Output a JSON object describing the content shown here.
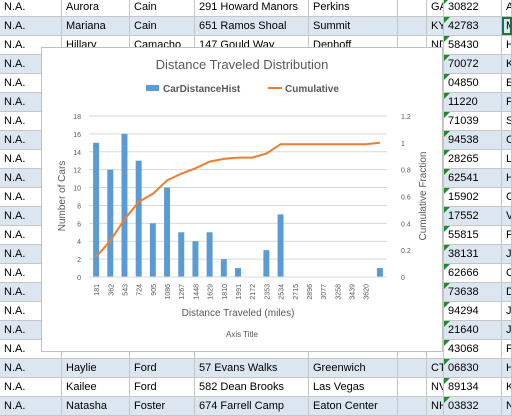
{
  "colors": {
    "band": "#dce6f1",
    "bar": "#5b9bd5",
    "line": "#ed7d31",
    "grid": "#d9d9d9",
    "axis_text": "#595959",
    "cell_marker": "#1e8c2e"
  },
  "sheet": {
    "rows": [
      {
        "top": [
          "N.A.",
          "Aurora",
          "Cain",
          "291 Howard Manors",
          "Perkins",
          "",
          "GA",
          "30822",
          "A"
        ]
      },
      {
        "top": [
          "N.A.",
          "Mariana",
          "Cain",
          "651 Ramos Shoal",
          "Summit",
          "",
          "KY",
          "42783",
          "M"
        ]
      },
      {
        "top": [
          "N.A.",
          "Hillary",
          "Camacho",
          "147 Gould Way",
          "Denhoff",
          "",
          "ND",
          "58430",
          "H"
        ]
      },
      {
        "top": [
          "N.A.",
          "",
          "",
          "",
          "",
          "",
          "",
          "70072",
          "K"
        ]
      },
      {
        "top": [
          "N.A.",
          "",
          "",
          "",
          "",
          "",
          "E",
          "04850",
          "E"
        ]
      },
      {
        "top": [
          "N.A.",
          "",
          "",
          "",
          "",
          "",
          "Y",
          "11220",
          "F"
        ]
      },
      {
        "top": [
          "N.A.",
          "",
          "",
          "",
          "",
          "",
          "",
          "71039",
          "S"
        ]
      },
      {
        "top": [
          "N.A.",
          "",
          "",
          "",
          "",
          "",
          "C",
          "94538",
          "C"
        ]
      },
      {
        "top": [
          "N.A.",
          "",
          "",
          "",
          "",
          "",
          "C",
          "28265",
          "L"
        ]
      },
      {
        "top": [
          "N.A.",
          "",
          "",
          "",
          "",
          "",
          "",
          "62541",
          "H"
        ]
      },
      {
        "top": [
          "N.A.",
          "",
          "",
          "",
          "",
          "",
          "A",
          "15902",
          "C"
        ]
      },
      {
        "top": [
          "N.A.",
          "",
          "",
          "",
          "",
          "",
          "A",
          "17552",
          "V"
        ]
      },
      {
        "top": [
          "N.A.",
          "",
          "",
          "",
          "",
          "",
          "N",
          "55815",
          "F"
        ]
      },
      {
        "top": [
          "N.A.",
          "",
          "",
          "",
          "",
          "",
          "N",
          "38131",
          "J"
        ]
      },
      {
        "top": [
          "N.A.",
          "",
          "",
          "",
          "",
          "",
          "",
          "62666",
          "C"
        ]
      },
      {
        "top": [
          "N.A.",
          "",
          "",
          "",
          "",
          "",
          "K",
          "73638",
          "D"
        ]
      },
      {
        "top": [
          "N.A.",
          "",
          "",
          "",
          "",
          "",
          "A",
          "94294",
          "J"
        ]
      },
      {
        "top": [
          "N.A.",
          "",
          "",
          "",
          "",
          "",
          "D",
          "21640",
          "J"
        ]
      },
      {
        "top": [
          "N.A.",
          "",
          "",
          "",
          "",
          "",
          "H",
          "43068",
          "F"
        ]
      },
      {
        "top": [
          "N.A.",
          "Haylie",
          "Ford",
          "57 Evans Walks",
          "Greenwich",
          "",
          "CT",
          "06830",
          "H"
        ]
      },
      {
        "top": [
          "N.A.",
          "Kailee",
          "Ford",
          "582 Dean Brooks",
          "Las Vegas",
          "",
          "NV",
          "89134",
          "K"
        ]
      },
      {
        "top": [
          "N.A.",
          "Natasha",
          "Foster",
          "674 Farrell Camp",
          "Eaton Center",
          "",
          "NH",
          "03832",
          "N"
        ]
      }
    ]
  },
  "chart_data": {
    "type": "bar",
    "title": "Distance Traveled Distribution",
    "legend": {
      "position": "top",
      "entries": [
        "CarDistanceHist",
        "Cumulative"
      ]
    },
    "xlabel": "Distance Traveled (miles)",
    "xlabel2": "Axis Title",
    "ylabel": "Number of Cars",
    "y2label": "Cumulative Fraction",
    "categories": [
      "181",
      "362",
      "543",
      "724",
      "905",
      "1086",
      "1267",
      "1448",
      "1629",
      "1810",
      "1991",
      "2172",
      "2353",
      "2534",
      "2715",
      "2896",
      "3077",
      "3258",
      "3439",
      "3620",
      ""
    ],
    "ylim": [
      0,
      18
    ],
    "yticks": [
      0,
      2,
      4,
      6,
      8,
      10,
      12,
      14,
      16,
      18
    ],
    "y2lim": [
      0,
      1.2
    ],
    "y2ticks": [
      "0",
      "0.2",
      "0.4",
      "0.6",
      "0.8",
      "1",
      "1.2"
    ],
    "series": [
      {
        "name": "CarDistanceHist",
        "type": "bar",
        "values": [
          15,
          12,
          16,
          13,
          6,
          10,
          5,
          4,
          5,
          2,
          1,
          0,
          3,
          7,
          0,
          0,
          0,
          0,
          0,
          0,
          1
        ]
      },
      {
        "name": "Cumulative",
        "type": "line",
        "axis": "secondary",
        "values": [
          0.15,
          0.27,
          0.43,
          0.56,
          0.62,
          0.72,
          0.77,
          0.81,
          0.86,
          0.88,
          0.89,
          0.89,
          0.92,
          0.99,
          0.99,
          0.99,
          0.99,
          0.99,
          0.99,
          0.99,
          1.0
        ]
      }
    ]
  }
}
